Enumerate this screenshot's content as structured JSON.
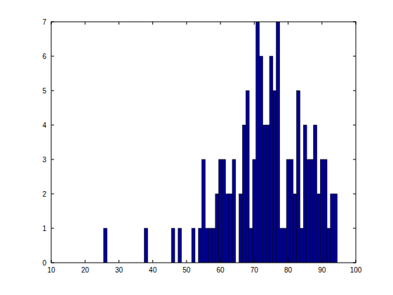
{
  "chart_data": {
    "type": "histogram",
    "bins": [
      25.5,
      26.5,
      27.5,
      28.5,
      29.5,
      30.5,
      31.5,
      32.5,
      33.5,
      34.5,
      35.5,
      36.5,
      37.5,
      38.5,
      39.5,
      40.5,
      41.5,
      42.5,
      43.5,
      44.5,
      45.5,
      46.5,
      47.5,
      48.5,
      49.5,
      50.5,
      51.5,
      52.5,
      53.5,
      54.5,
      55.5,
      56.5,
      57.5,
      58.5,
      59.5,
      60.5,
      61.5,
      62.5,
      63.5,
      64.5,
      65.5,
      66.5,
      67.5,
      68.5,
      69.5,
      70.5,
      71.5,
      72.5,
      73.5,
      74.5,
      75.5,
      76.5,
      77.5,
      78.5,
      79.5,
      80.5,
      81.5,
      82.5,
      83.5,
      84.5,
      85.5,
      86.5,
      87.5,
      88.5,
      89.5,
      90.5,
      91.5,
      92.5,
      93.5,
      94.5
    ],
    "values": [
      1,
      0,
      0,
      0,
      0,
      0,
      0,
      0,
      0,
      0,
      0,
      0,
      1,
      0,
      0,
      0,
      0,
      0,
      0,
      0,
      1,
      0,
      1,
      0,
      0,
      0,
      1,
      0,
      1,
      3,
      1,
      1,
      1,
      2,
      3,
      3,
      2,
      2,
      3,
      0,
      2,
      4,
      5,
      1,
      3,
      7,
      6,
      4,
      4,
      6,
      5,
      7,
      1,
      1,
      3,
      3,
      2,
      5,
      1,
      4,
      3,
      3,
      4,
      2,
      3,
      3,
      1,
      2,
      2
    ],
    "color": "#00008f",
    "xlim": [
      10,
      100
    ],
    "xticks": [
      10,
      20,
      30,
      40,
      50,
      60,
      70,
      80,
      90,
      100
    ],
    "ylim": [
      0,
      7
    ],
    "yticks": [
      0,
      1,
      2,
      3,
      4,
      5,
      6,
      7
    ],
    "grid": false
  }
}
